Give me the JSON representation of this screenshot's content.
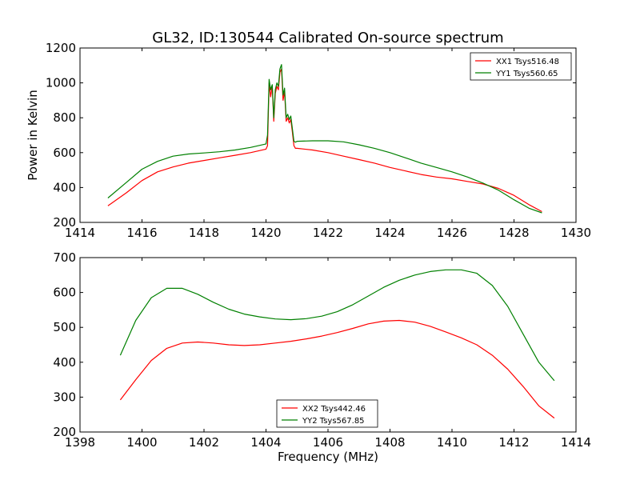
{
  "figure": {
    "title": "GL32, ID:130544 Calibrated On-source spectrum",
    "xlabel": "Frequency (MHz)",
    "ylabel_top": "Power in Kelvin"
  },
  "chart_data": [
    {
      "type": "line",
      "title": "GL32, ID:130544 Calibrated On-source spectrum",
      "xlabel": "",
      "ylabel": "Power in Kelvin",
      "xlim": [
        1414,
        1430
      ],
      "ylim": [
        200,
        1200
      ],
      "xticks": [
        "1414",
        "1416",
        "1418",
        "1420",
        "1422",
        "1424",
        "1426",
        "1428",
        "1430"
      ],
      "yticks": [
        "200",
        "400",
        "600",
        "800",
        "1000",
        "1200"
      ],
      "xticks_values": [
        1414,
        1416,
        1418,
        1420,
        1422,
        1424,
        1426,
        1428,
        1430
      ],
      "yticks_values": [
        200,
        400,
        600,
        800,
        1000,
        1200
      ],
      "legend_position": "top-right",
      "grid": false,
      "series": [
        {
          "name": "XX1 Tsys516.48",
          "color": "#ff0000",
          "x": [
            1414.9,
            1415.5,
            1416,
            1416.5,
            1417,
            1417.5,
            1418,
            1418.5,
            1419,
            1419.5,
            1420,
            1420.05,
            1420.1,
            1420.15,
            1420.2,
            1420.25,
            1420.3,
            1420.35,
            1420.4,
            1420.45,
            1420.5,
            1420.55,
            1420.6,
            1420.65,
            1420.7,
            1420.75,
            1420.8,
            1420.85,
            1420.9,
            1420.95,
            1421,
            1421.5,
            1422,
            1422.5,
            1423,
            1423.5,
            1424,
            1424.5,
            1425,
            1425.5,
            1426,
            1426.5,
            1427,
            1427.5,
            1428,
            1428.5,
            1428.9
          ],
          "values": [
            295,
            370,
            440,
            490,
            518,
            540,
            555,
            570,
            585,
            600,
            620,
            640,
            1000,
            920,
            980,
            780,
            940,
            980,
            960,
            1060,
            1080,
            900,
            950,
            780,
            800,
            770,
            790,
            720,
            640,
            625,
            625,
            615,
            600,
            580,
            560,
            540,
            515,
            495,
            475,
            460,
            450,
            435,
            420,
            395,
            355,
            300,
            262
          ]
        },
        {
          "name": "YY1 Tsys560.65",
          "color": "#008000",
          "x": [
            1414.9,
            1415.5,
            1416,
            1416.5,
            1417,
            1417.5,
            1418,
            1418.5,
            1419,
            1419.5,
            1420,
            1420.05,
            1420.1,
            1420.15,
            1420.2,
            1420.25,
            1420.3,
            1420.35,
            1420.4,
            1420.45,
            1420.5,
            1420.55,
            1420.6,
            1420.65,
            1420.7,
            1420.75,
            1420.8,
            1420.85,
            1420.9,
            1420.95,
            1421,
            1421.5,
            1422,
            1422.5,
            1423,
            1423.5,
            1424,
            1424.5,
            1425,
            1425.5,
            1426,
            1426.5,
            1427,
            1427.5,
            1428,
            1428.5,
            1428.9
          ],
          "values": [
            340,
            430,
            505,
            550,
            580,
            592,
            598,
            605,
            615,
            630,
            650,
            700,
            1020,
            960,
            990,
            800,
            960,
            1000,
            980,
            1080,
            1105,
            930,
            970,
            800,
            820,
            790,
            810,
            740,
            665,
            660,
            665,
            668,
            668,
            662,
            645,
            625,
            600,
            570,
            540,
            515,
            490,
            460,
            425,
            385,
            330,
            280,
            255
          ]
        }
      ]
    },
    {
      "type": "line",
      "title": "",
      "xlabel": "Frequency (MHz)",
      "ylabel": "",
      "xlim": [
        1398,
        1414
      ],
      "ylim": [
        200,
        700
      ],
      "xticks": [
        "1398",
        "1400",
        "1402",
        "1404",
        "1406",
        "1408",
        "1410",
        "1412",
        "1414"
      ],
      "yticks": [
        "200",
        "300",
        "400",
        "500",
        "600",
        "700"
      ],
      "xticks_values": [
        1398,
        1400,
        1402,
        1404,
        1406,
        1408,
        1410,
        1412,
        1414
      ],
      "yticks_values": [
        200,
        300,
        400,
        500,
        600,
        700
      ],
      "legend_position": "bottom-center",
      "grid": false,
      "series": [
        {
          "name": "XX2 Tsys442.46",
          "color": "#ff0000",
          "x": [
            1399.3,
            1399.8,
            1400.3,
            1400.8,
            1401.3,
            1401.8,
            1402.3,
            1402.8,
            1403.3,
            1403.8,
            1404.3,
            1404.8,
            1405.3,
            1405.8,
            1406.3,
            1406.8,
            1407.3,
            1407.8,
            1408.3,
            1408.8,
            1409.3,
            1409.8,
            1410.3,
            1410.8,
            1411.3,
            1411.8,
            1412.3,
            1412.8,
            1413.3
          ],
          "values": [
            292,
            350,
            405,
            440,
            455,
            458,
            455,
            450,
            448,
            450,
            455,
            460,
            467,
            475,
            485,
            497,
            510,
            518,
            520,
            515,
            503,
            487,
            470,
            450,
            420,
            380,
            330,
            275,
            240
          ]
        },
        {
          "name": "YY2 Tsys567.85",
          "color": "#008000",
          "x": [
            1399.3,
            1399.8,
            1400.3,
            1400.8,
            1401.3,
            1401.8,
            1402.3,
            1402.8,
            1403.3,
            1403.8,
            1404.3,
            1404.8,
            1405.3,
            1405.8,
            1406.3,
            1406.8,
            1407.3,
            1407.8,
            1408.3,
            1408.8,
            1409.3,
            1409.8,
            1410.3,
            1410.8,
            1411.3,
            1411.8,
            1412.3,
            1412.8,
            1413.3
          ],
          "values": [
            420,
            520,
            585,
            612,
            612,
            595,
            572,
            552,
            538,
            530,
            524,
            522,
            525,
            532,
            545,
            565,
            590,
            615,
            635,
            650,
            660,
            665,
            665,
            655,
            620,
            560,
            480,
            400,
            347
          ]
        }
      ]
    }
  ]
}
